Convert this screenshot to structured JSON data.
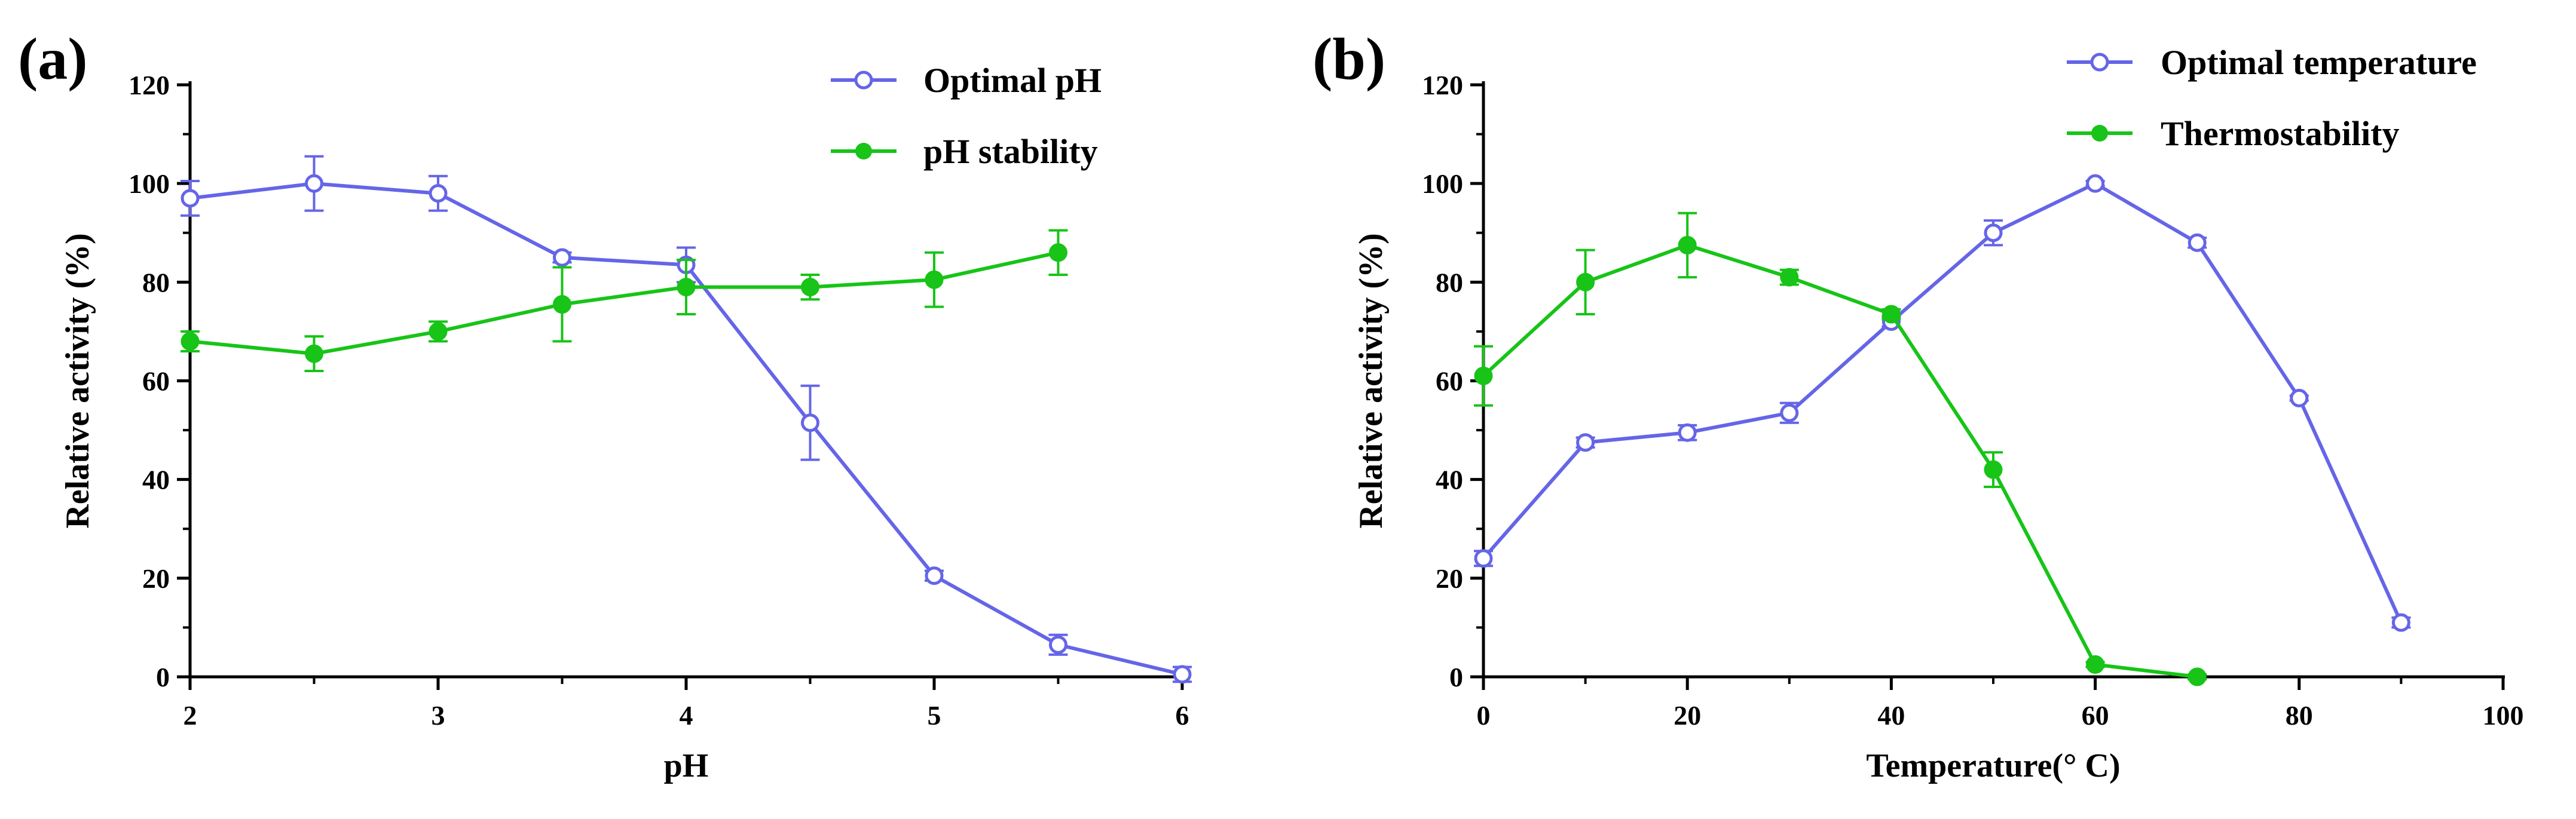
{
  "colors": {
    "series_blue": "#6565e8",
    "series_green": "#17c417",
    "axis": "#000000"
  },
  "chart_data": [
    {
      "panel": "(a)",
      "type": "line",
      "xlabel": "pH",
      "ylabel": "Relative activity (%)",
      "xlim": [
        2,
        6
      ],
      "ylim": [
        0,
        120
      ],
      "xticks": [
        2,
        3,
        4,
        5,
        6
      ],
      "yticks": [
        0,
        20,
        40,
        60,
        80,
        100,
        120
      ],
      "legend_position": "top-right",
      "series": [
        {
          "name": "Optimal pH",
          "marker": "open-circle",
          "color": "#6565e8",
          "x": [
            2,
            2.5,
            3,
            3.5,
            4,
            4.5,
            5,
            5.5,
            6
          ],
          "y": [
            97,
            100,
            98,
            85,
            83.5,
            51.5,
            20.5,
            6.5,
            0.5
          ],
          "err": [
            3.5,
            5.5,
            3.5,
            1,
            3.5,
            7.5,
            1,
            2,
            1.5
          ]
        },
        {
          "name": "pH stability",
          "marker": "filled-circle",
          "color": "#17c417",
          "x": [
            2,
            2.5,
            3,
            3.5,
            4,
            4.5,
            5,
            5.5
          ],
          "y": [
            68,
            65.5,
            70,
            75.5,
            79,
            79,
            80.5,
            86
          ],
          "err": [
            2,
            3.5,
            2,
            7.5,
            5.5,
            2.5,
            5.5,
            4.5
          ]
        }
      ]
    },
    {
      "panel": "(b)",
      "type": "line",
      "xlabel": "Temperature(° C)",
      "ylabel": "Relative activity (%)",
      "xlim": [
        0,
        100
      ],
      "ylim": [
        0,
        120
      ],
      "xticks": [
        0,
        20,
        40,
        60,
        80,
        100
      ],
      "yticks": [
        0,
        20,
        40,
        60,
        80,
        100,
        120
      ],
      "legend_position": "top-right",
      "series": [
        {
          "name": "Optimal temperature",
          "marker": "open-circle",
          "color": "#6565e8",
          "x": [
            0,
            10,
            20,
            30,
            40,
            50,
            60,
            70,
            80,
            90
          ],
          "y": [
            24,
            47.5,
            49.5,
            53.5,
            72,
            90,
            100,
            88,
            56.5,
            11
          ],
          "err": [
            1.5,
            1,
            1.5,
            2,
            1,
            2.5,
            0.5,
            1,
            0.5,
            1
          ]
        },
        {
          "name": "Thermostability",
          "marker": "filled-circle",
          "color": "#17c417",
          "x": [
            0,
            10,
            20,
            30,
            40,
            50,
            60,
            70
          ],
          "y": [
            61,
            80,
            87.5,
            81,
            73.5,
            42,
            2.5,
            0
          ],
          "err": [
            6,
            6.5,
            6.5,
            1.5,
            1,
            3.5,
            0.5,
            0.5
          ]
        }
      ]
    }
  ]
}
